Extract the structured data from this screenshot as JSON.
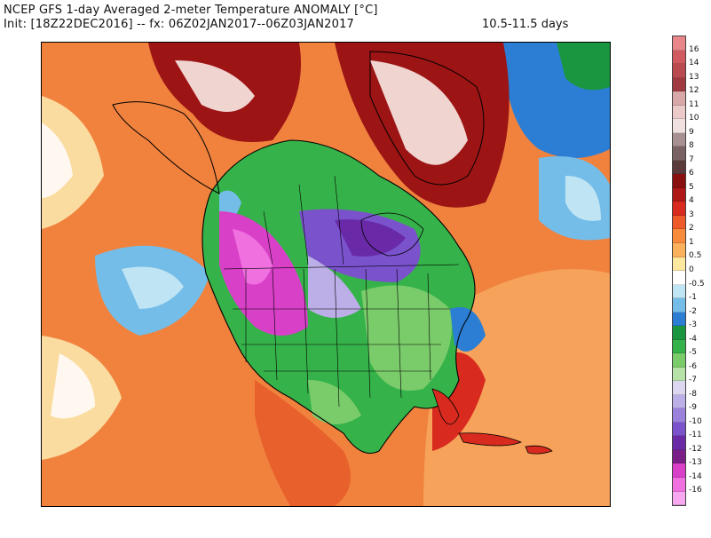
{
  "header": {
    "title": "NCEP GFS 1-day Averaged 2-meter Temperature ANOMALY [°C]",
    "init_line": "Init: [18Z22DEC2016] -- fx: 06Z02JAN2017--06Z03JAN2017",
    "period": "10.5-11.5 days"
  },
  "colorbar": {
    "labels": [
      "16",
      "14",
      "13",
      "12",
      "11",
      "10",
      "9",
      "8",
      "7",
      "6",
      "5",
      "4",
      "3",
      "2",
      "1",
      "0.5",
      "0",
      "-0.5",
      "-1",
      "-2",
      "-3",
      "-4",
      "-5",
      "-6",
      "-7",
      "-8",
      "-9",
      "-10",
      "-11",
      "-12",
      "-13",
      "-14",
      "-16"
    ],
    "colors": [
      "#e8868a",
      "#d15a60",
      "#b84a50",
      "#a03a40",
      "#d8a8a8",
      "#eccaca",
      "#f0e0e0",
      "#a89090",
      "#7a6262",
      "#5a3a3a",
      "#8a1010",
      "#b01818",
      "#d82a1e",
      "#ee5a2a",
      "#f88a3c",
      "#fbb05c",
      "#fde8a0",
      "#ffffff",
      "#bfe4f4",
      "#74bde8",
      "#2c7ed4",
      "#1a9640",
      "#36b24a",
      "#7acc6a",
      "#b6e2a8",
      "#dcd6f0",
      "#bcaee6",
      "#9a82dc",
      "#7a52cc",
      "#6a2aa8",
      "#7a1e88",
      "#d840c8",
      "#f070e0",
      "#f8a8f0"
    ]
  },
  "map": {
    "colors": {
      "ocean_warm": "#e8602c",
      "ocean_orange": "#f6a25a",
      "pale": "#fbdca0",
      "white": "#fff8f0",
      "blue": "#74bde8",
      "green": "#36b24a",
      "lightgreen": "#7acc6a",
      "purple": "#7a52cc",
      "lavender": "#bcaee6",
      "magenta": "#d840c8",
      "dark_red": "#9c1414",
      "pinkwhite": "#f0d4d0"
    }
  }
}
